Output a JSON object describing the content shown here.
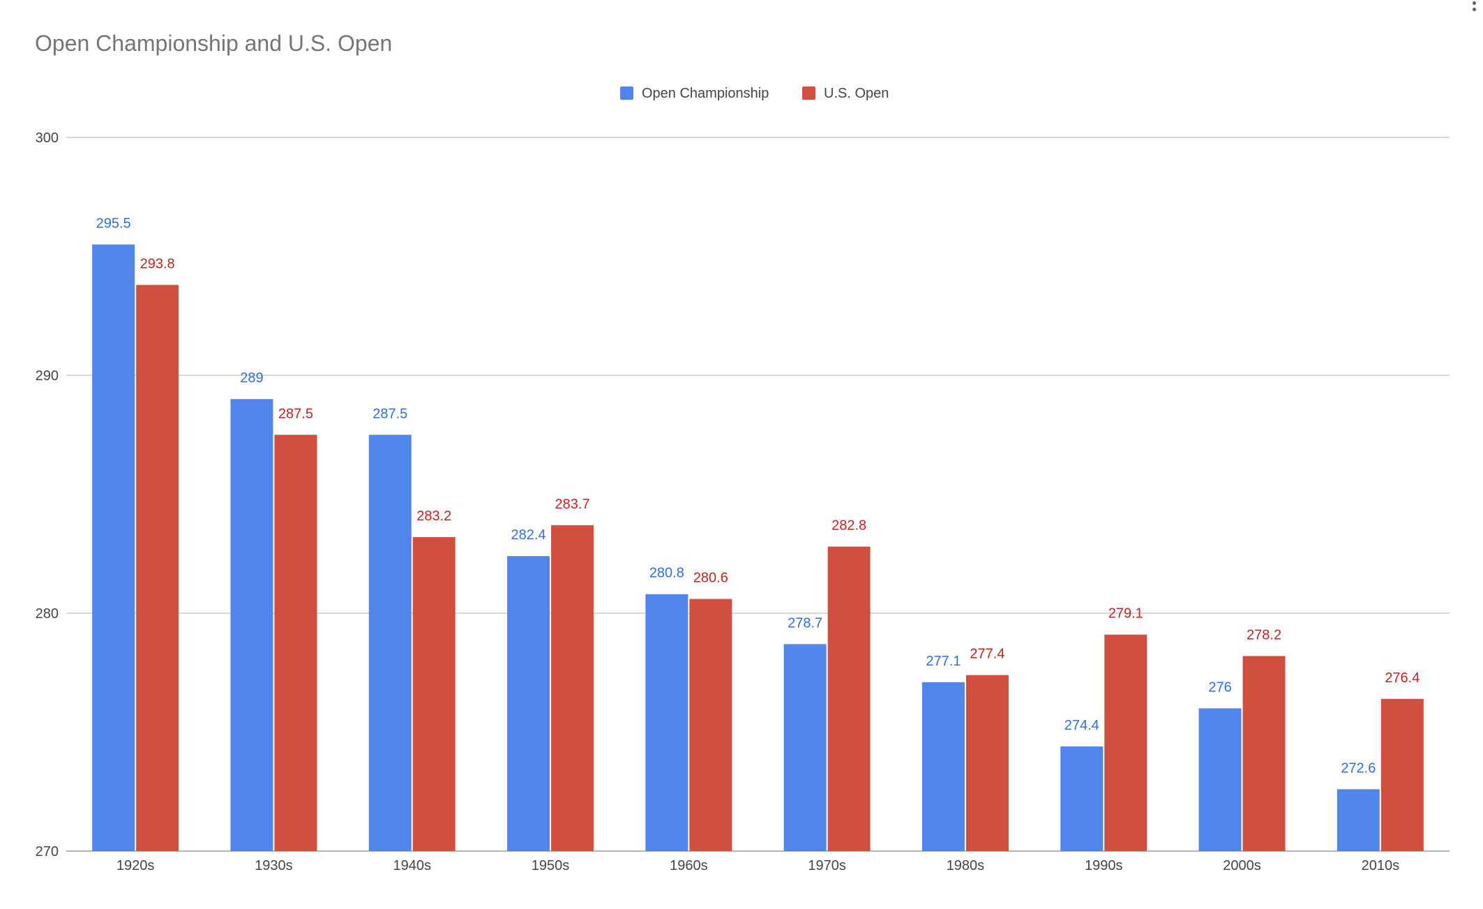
{
  "chart_data": {
    "type": "bar",
    "title": "Open Championship and U.S. Open",
    "xlabel": "",
    "ylabel": "",
    "categories": [
      "1920s",
      "1930s",
      "1940s",
      "1950s",
      "1960s",
      "1970s",
      "1980s",
      "1990s",
      "2000s",
      "2010s"
    ],
    "series": [
      {
        "name": "Open Championship",
        "color": "#5086ec",
        "values": [
          295.5,
          289,
          287.5,
          282.4,
          280.8,
          278.7,
          277.1,
          274.4,
          276,
          272.6
        ],
        "labels": [
          "295.5",
          "289",
          "287.5",
          "282.4",
          "280.8",
          "278.7",
          "277.1",
          "274.4",
          "276",
          "272.6"
        ]
      },
      {
        "name": "U.S. Open",
        "color": "#d04f3f",
        "values": [
          293.8,
          287.5,
          283.2,
          283.7,
          280.6,
          282.8,
          277.4,
          279.1,
          278.2,
          276.4
        ],
        "labels": [
          "293.8",
          "287.5",
          "283.2",
          "283.7",
          "280.6",
          "282.8",
          "277.4",
          "279.1",
          "278.2",
          "276.4"
        ]
      }
    ],
    "ylim": [
      270,
      300
    ],
    "yticks": [
      270,
      280,
      290,
      300
    ],
    "ytick_labels": [
      "270",
      "280",
      "290",
      "300"
    ],
    "grid": true,
    "legend_position": "top-center",
    "label_colors": [
      "#2f6fd9",
      "#c5221f"
    ]
  },
  "menu": {
    "icon": "more-vert-icon"
  }
}
